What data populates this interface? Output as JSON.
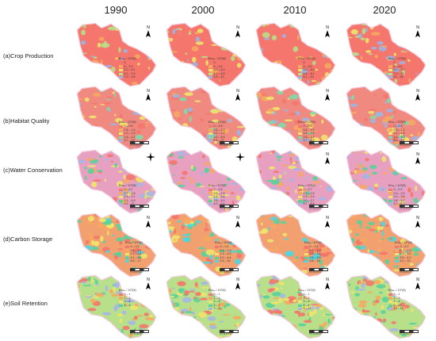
{
  "columns": [
    "1990",
    "2000",
    "2010",
    "2020"
  ],
  "rows": [
    {
      "label": "(a)Crop Production",
      "palette": [
        "#f4766c",
        "#f6a860",
        "#ede66b",
        "#b8e08a",
        "#9fb4e0"
      ],
      "base": "#f4766c",
      "legends": [
        {
          "title": "Emₐᵥ / 10⁷(¥)",
          "classes": [
            "0",
            "0 – 2.0",
            "2.0 – 5.1",
            "5.1 – 7.0",
            "7.0 – 9.5"
          ]
        },
        {
          "title": "Emₐᵥ / 10⁷(¥)",
          "classes": [
            "0",
            "0 – 3.0",
            "3.0 – 4.0",
            "4.0 – 4.5",
            "4.5 – 10"
          ]
        },
        {
          "title": "Emₐᵥ / 10⁷(¥)",
          "classes": [
            "0",
            "0 – 3.0",
            "3.0 – 6.5",
            "6.5 – 8.1",
            "8.1 – 20"
          ]
        },
        {
          "title": "Emₐᵥ / 10⁷(¥)",
          "classes": [
            "0",
            "0 – 5.0",
            "5.0 – 7.0",
            "7.0 – 15",
            "15 – 28"
          ]
        }
      ]
    },
    {
      "label": "(b)Habitat Quality",
      "palette": [
        "#f4766c",
        "#f6a860",
        "#ede66b",
        "#7fd9a8",
        "#9fb4e0"
      ],
      "base": "#f08a80",
      "legends": [
        {
          "title": "Emₐᵥ / 10⁷(¥)",
          "classes": [
            "0 – 0.5",
            "0.5 – 1.0",
            "1.0 – 1.6",
            "1.6 – 3.7",
            "3.7 – 13"
          ]
        },
        {
          "title": "Emₐᵥ / 10⁷(¥)",
          "classes": [
            "0 – 0.5",
            "0.5 – 1.2",
            "1.2 – 3.0",
            "3.0 – 5.5",
            "5.5 – 12"
          ]
        },
        {
          "title": "Emₐᵥ / 10⁷(¥)",
          "classes": [
            "0 – 0.6",
            "0.6 – 1.8",
            "1.8 – 2.5",
            "2.5 – 3.7",
            "3.7 – 8.5"
          ]
        },
        {
          "title": "Emₐᵥ / 10⁷(¥)",
          "classes": [
            "0 – 0.5",
            "0.5 – 1.1",
            "1.1 – 1.9",
            "1.9 – 5.0",
            "5.0 – 6.7"
          ]
        }
      ]
    },
    {
      "label": "(c)Water Conservation",
      "palette": [
        "#f4766c",
        "#f6a860",
        "#ede66b",
        "#59d29a",
        "#a7b6e6"
      ],
      "base": "#e8a0c0",
      "legends": [
        {
          "title": "Emₐᵥ / 10⁷(¥)",
          "classes": [
            "0 – 0.7",
            "0.7 – 1.5",
            "1.5 – 2.1",
            "2.1 – 4.9",
            "4.9 – 17"
          ]
        },
        {
          "title": "Emₐᵥ / 10⁷(¥)",
          "classes": [
            "0 – 0.5",
            "0.5 – 1.5",
            "1.5 – 2.6",
            "2.6 – 4.0",
            "4.0 – 8.4"
          ]
        },
        {
          "title": "Emₐᵥ / 10⁷(¥)",
          "classes": [
            "0 – 0.7",
            "0.7 – 1.5",
            "1.5 – 2.0",
            "2.0 – 3.7",
            "3.7 – 8.5"
          ]
        },
        {
          "title": "Emₐᵥ / 10⁷(¥)",
          "classes": [
            "0 – 0.3",
            "0.3 – 2.0",
            "2.0 – 3.8",
            "3.8 – 5.7",
            "5.7 – 6.7"
          ]
        }
      ]
    },
    {
      "label": "(d)Carbon Storage",
      "palette": [
        "#f4766c",
        "#f6a860",
        "#ede66b",
        "#59d29a",
        "#4fd6e0"
      ],
      "base": "#f2a070",
      "legends": [
        {
          "title": "Emₐᵥ / 10⁷(¥)",
          "classes": [
            "0 – 0.4",
            "0.4 – 2.1",
            "2.1 – 3.1",
            "3.1 – 6.6",
            "6.6 – 17"
          ]
        },
        {
          "title": "Emₐᵥ / 10⁷(¥)",
          "classes": [
            "0 – 0.4",
            "0.4 – 1.3",
            "1.3 – 4.0",
            "4.0 – 6.4",
            "6.4 – 16"
          ]
        },
        {
          "title": "Emₐᵥ / 10⁷(¥)",
          "classes": [
            "0 – 0.6",
            "0.6 – 1.0",
            "1.0 – 3.5",
            "3.5 – 6.8",
            "6.8 – 15"
          ]
        },
        {
          "title": "Emₐᵥ / 10⁷(¥)",
          "classes": [
            "0 – 0.7",
            "0.7 – 1.5",
            "1.5 – 3.0",
            "3.0 – 4.2",
            "4.2 – 10"
          ]
        }
      ]
    },
    {
      "label": "(e)Soil Retention",
      "palette": [
        "#f4766c",
        "#f6a860",
        "#ede66b",
        "#59d29a",
        "#a7b6e6"
      ],
      "base": "#b8e08a",
      "legends": [
        {
          "title": "Emₐᵥ / 10⁷(¥)",
          "classes": [
            "0 – 1",
            "1 – 3",
            "3 – 6",
            "6 – 9"
          ]
        },
        {
          "title": "Emₐᵥ / 10⁷(¥)",
          "classes": [
            "0 – 1",
            "1 – 2",
            "2 – 5",
            "5 – 7",
            "7 – 11"
          ]
        },
        {
          "title": "Emₐᵥ / 10⁷(¥)",
          "classes": [
            "0 – 1",
            "1 – 3",
            "3 – 6",
            "6 – 8",
            "8 – 13"
          ]
        },
        {
          "title": "Emₐᵥ / 10⁷(¥)",
          "classes": [
            "0 – 1",
            "1 – 3",
            "3 – 6",
            "6 – 10",
            "10 – 16"
          ]
        }
      ]
    }
  ],
  "north_label": "N",
  "scale_label": "0  5  10     20 km",
  "icons": [
    "north-arrow-icon",
    "compass-rose-icon"
  ]
}
